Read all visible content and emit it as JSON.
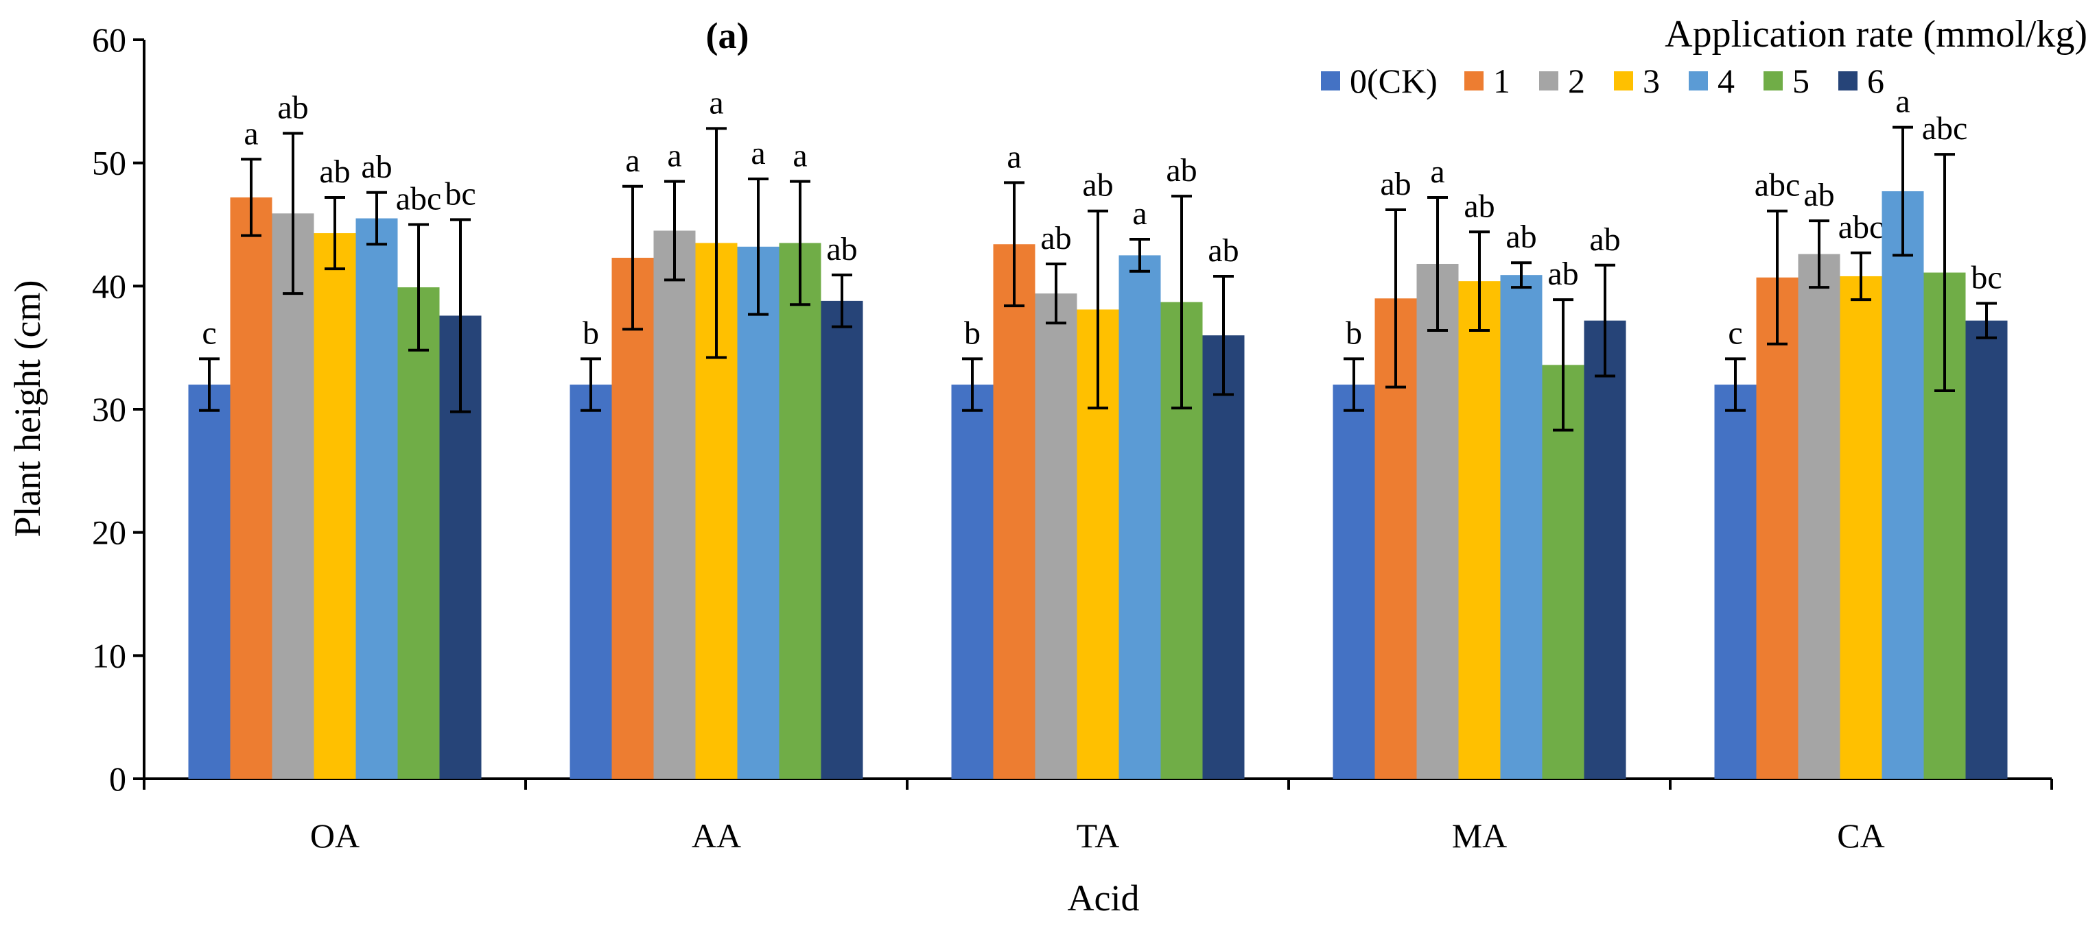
{
  "chart_data": {
    "type": "bar",
    "panel_label": "(a)",
    "title": "",
    "xlabel": "Acid",
    "ylabel": "Plant height (cm)",
    "ylim": [
      0,
      60
    ],
    "yticks": [
      0,
      10,
      20,
      30,
      40,
      50,
      60
    ],
    "grid": false,
    "legend_title": "Application rate (mmol/kg)",
    "legend_position": "top-right",
    "categories": [
      "OA",
      "AA",
      "TA",
      "MA",
      "CA"
    ],
    "series": [
      {
        "name": "0(CK)",
        "color": "#4472C4",
        "values": [
          32.0,
          32.0,
          32.0,
          32.0,
          32.0
        ],
        "errors": [
          2.1,
          2.1,
          2.1,
          2.1,
          2.1
        ],
        "labels": [
          "c",
          "b",
          "b",
          "b",
          "c"
        ]
      },
      {
        "name": "1",
        "color": "#ED7D31",
        "values": [
          47.2,
          42.3,
          43.4,
          39.0,
          40.7
        ],
        "errors": [
          3.1,
          5.8,
          5.0,
          7.2,
          5.4
        ],
        "labels": [
          "a",
          "a",
          "a",
          "ab",
          "abc"
        ]
      },
      {
        "name": "2",
        "color": "#A5A5A5",
        "values": [
          45.9,
          44.5,
          39.4,
          41.8,
          42.6
        ],
        "errors": [
          6.5,
          4.0,
          2.4,
          5.4,
          2.7
        ],
        "labels": [
          "ab",
          "a",
          "ab",
          "a",
          "ab"
        ]
      },
      {
        "name": "3",
        "color": "#FFC000",
        "values": [
          44.3,
          43.5,
          38.1,
          40.4,
          40.8
        ],
        "errors": [
          2.9,
          9.3,
          8.0,
          4.0,
          1.9
        ],
        "labels": [
          "ab",
          "a",
          "ab",
          "ab",
          "abc"
        ]
      },
      {
        "name": "4",
        "color": "#5B9BD5",
        "values": [
          45.5,
          43.2,
          42.5,
          40.9,
          47.7
        ],
        "errors": [
          2.1,
          5.5,
          1.3,
          1.0,
          5.2
        ],
        "labels": [
          "ab",
          "a",
          "a",
          "ab",
          "a"
        ]
      },
      {
        "name": "5",
        "color": "#70AD47",
        "values": [
          39.9,
          43.5,
          38.7,
          33.6,
          41.1
        ],
        "errors": [
          5.1,
          5.0,
          8.6,
          5.3,
          9.6
        ],
        "labels": [
          "abc",
          "a",
          "ab",
          "ab",
          "abc"
        ]
      },
      {
        "name": "6",
        "color": "#264478",
        "values": [
          37.6,
          38.8,
          36.0,
          37.2,
          37.2
        ],
        "errors": [
          7.8,
          2.1,
          4.8,
          4.5,
          1.4
        ],
        "labels": [
          "bc",
          "ab",
          "ab",
          "ab",
          "bc"
        ]
      }
    ]
  }
}
